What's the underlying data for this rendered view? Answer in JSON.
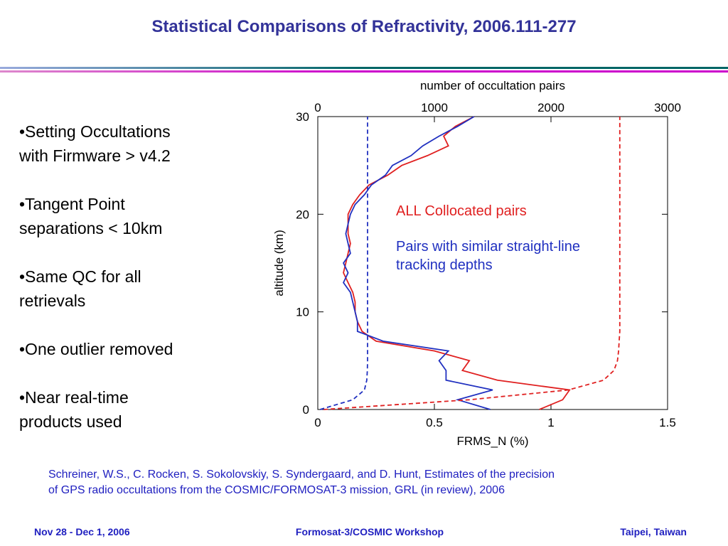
{
  "title": "Statistical Comparisons of Refractivity, 2006.111-277",
  "bullets": [
    [
      "•Setting Occultations",
      "with Firmware > v4.2"
    ],
    [
      "•Tangent Point",
      "separations < 10km"
    ],
    [
      "•Same QC for all",
      "retrievals"
    ],
    [
      "•One outlier removed"
    ],
    [
      "•Near real-time",
      "products used"
    ]
  ],
  "reference": [
    "Schreiner, W.S., C. Rocken, S. Sokolovskiy, S. Syndergaard, and D. Hunt, Estimates of the precision",
    "of GPS radio occultations from the COSMIC/FORMOSAT-3 mission, GRL (in review), 2006"
  ],
  "footer": {
    "left": "Nov 28 - Dec 1, 2006",
    "center": "Formosat-3/COSMIC Workshop",
    "right": "Taipei, Taiwan"
  },
  "chart_data": {
    "type": "line",
    "xlabel": "FRMS_N (%)",
    "ylabel": "altitude (km)",
    "x2label": "number of occultation pairs",
    "xlim": [
      0,
      1.5
    ],
    "xticks": [
      0,
      0.5,
      1,
      1.5
    ],
    "x2lim": [
      0,
      3000
    ],
    "x2ticks": [
      0,
      1000,
      2000,
      3000
    ],
    "ylim": [
      0,
      30
    ],
    "yticks": [
      0,
      10,
      20,
      30
    ],
    "y": [
      0,
      1,
      2,
      3,
      4,
      5,
      6,
      7,
      8,
      9,
      10,
      11,
      12,
      13,
      14,
      15,
      16,
      17,
      18,
      19,
      20,
      21,
      22,
      23,
      24,
      25,
      26,
      27,
      28,
      29,
      30
    ],
    "series": [
      {
        "name": "ALL Collocated pairs",
        "color": "#e02020",
        "dash": false,
        "axis": "x",
        "values": [
          0.95,
          1.05,
          1.08,
          0.77,
          0.62,
          0.65,
          0.5,
          0.25,
          0.19,
          0.17,
          0.16,
          0.16,
          0.15,
          0.13,
          0.11,
          0.12,
          0.13,
          0.14,
          0.13,
          0.13,
          0.13,
          0.15,
          0.18,
          0.22,
          0.3,
          0.36,
          0.47,
          0.56,
          0.54,
          0.59,
          0.67
        ]
      },
      {
        "name": "Pairs with similar straight-line tracking depths",
        "color": "#2030c0",
        "dash": false,
        "axis": "x",
        "values": [
          0.74,
          0.6,
          0.75,
          0.55,
          0.55,
          0.52,
          0.56,
          0.28,
          0.17,
          0.17,
          0.16,
          0.15,
          0.14,
          0.11,
          0.13,
          0.11,
          0.14,
          0.13,
          0.12,
          0.13,
          0.14,
          0.16,
          0.2,
          0.23,
          0.29,
          0.32,
          0.4,
          0.45,
          0.52,
          0.6,
          0.67
        ]
      },
      {
        "color": "#e02020",
        "dash": true,
        "axis": "x2",
        "values": [
          50,
          1300,
          2150,
          2450,
          2540,
          2570,
          2580,
          2585,
          2590,
          2590,
          2590,
          2590,
          2590,
          2590,
          2590,
          2590,
          2590,
          2590,
          2590,
          2590,
          2590,
          2590,
          2590,
          2590,
          2590,
          2590,
          2590,
          2590,
          2590,
          2590,
          2590
        ]
      },
      {
        "color": "#2030c0",
        "dash": true,
        "axis": "x2",
        "values": [
          20,
          300,
          400,
          420,
          425,
          427,
          427,
          427,
          427,
          427,
          427,
          427,
          427,
          427,
          427,
          427,
          427,
          427,
          427,
          427,
          427,
          427,
          427,
          427,
          427,
          427,
          427,
          427,
          427,
          427,
          427
        ]
      }
    ]
  }
}
